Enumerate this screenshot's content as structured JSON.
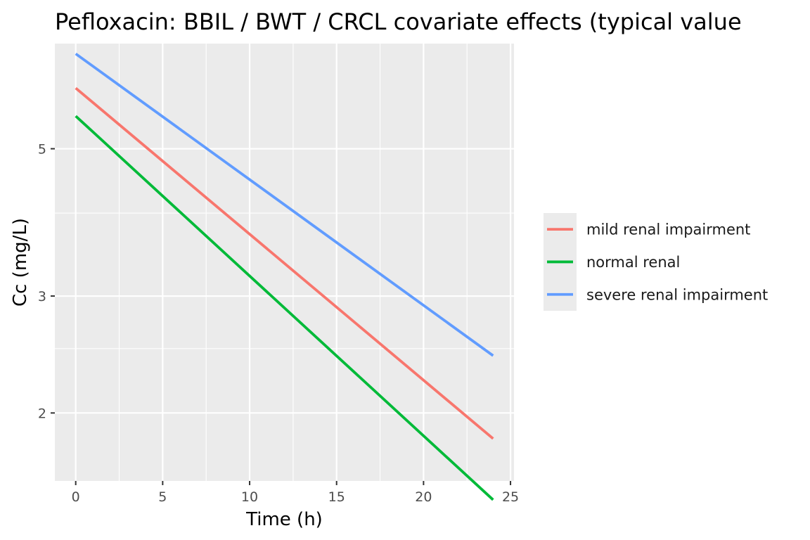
{
  "chart_data": {
    "type": "line",
    "title": "Pefloxacin: BBIL / BWT / CRCL covariate effects (typical value",
    "xlabel": "Time (h)",
    "ylabel": "Cc (mg/L)",
    "x_scale": "linear",
    "y_scale": "log",
    "xlim": [
      -1.2,
      25.2
    ],
    "ylim": [
      1.58,
      7.2
    ],
    "x_ticks": [
      0,
      5,
      10,
      15,
      20,
      25
    ],
    "x_tick_labels": [
      "0",
      "5",
      "10",
      "15",
      "20",
      "25"
    ],
    "y_ticks": [
      2,
      3,
      5
    ],
    "y_tick_labels": [
      "2",
      "3",
      "5"
    ],
    "x_minor_ticks": [
      2.5,
      7.5,
      12.5,
      17.5,
      22.5
    ],
    "y_minor_ticks": [
      2.5,
      4
    ],
    "grid": true,
    "legend_position": "right",
    "series": [
      {
        "name": "mild renal impairment",
        "color": "#F8766D",
        "x": [
          0,
          24
        ],
        "y": [
          6.17,
          1.83
        ]
      },
      {
        "name": "normal renal",
        "color": "#00BA38",
        "x": [
          0,
          24
        ],
        "y": [
          5.6,
          1.48
        ]
      },
      {
        "name": "severe renal impairment",
        "color": "#619CFF",
        "x": [
          0,
          24
        ],
        "y": [
          6.95,
          2.44
        ]
      }
    ]
  }
}
